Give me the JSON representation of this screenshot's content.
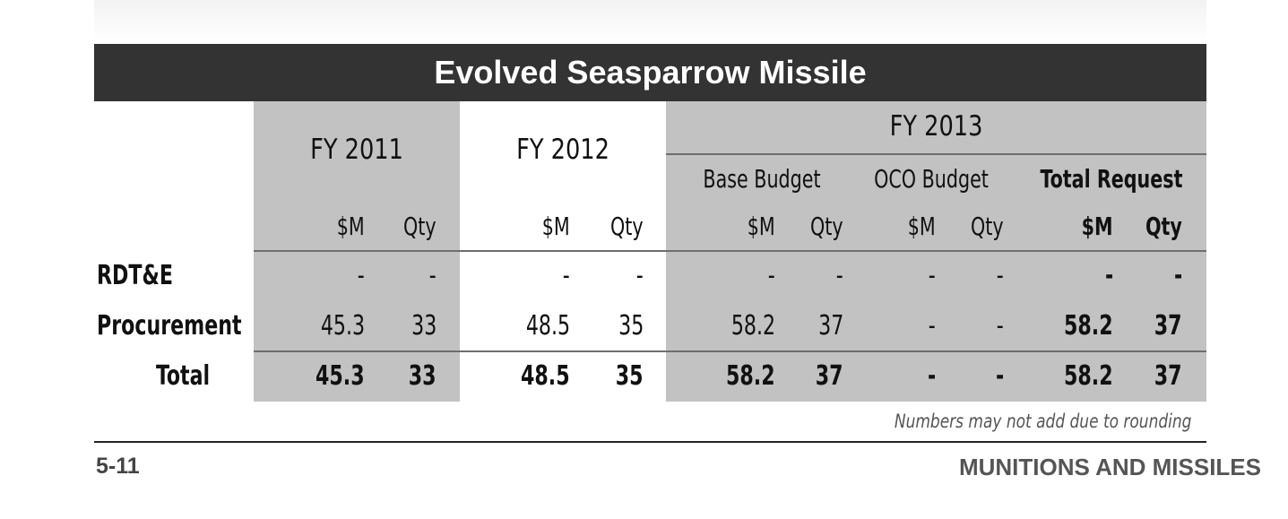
{
  "title": "Evolved Seasparrow Missile",
  "fiscal_years": {
    "fy2011": "FY 2011",
    "fy2012": "FY 2012",
    "fy2013": "FY 2013"
  },
  "fy2013_sub": {
    "base": "Base Budget",
    "oco": "OCO Budget",
    "total": "Total Request"
  },
  "col_labels": {
    "money": "$M",
    "qty": "Qty"
  },
  "rows": [
    {
      "label": "RDT&E",
      "values": [
        "-",
        "-",
        "-",
        "-",
        "-",
        "-",
        "-",
        "-",
        "-",
        "-"
      ]
    },
    {
      "label": "Procurement",
      "values": [
        "45.3",
        "33",
        "48.5",
        "35",
        "58.2",
        "37",
        "-",
        "-",
        "58.2",
        "37"
      ]
    },
    {
      "label": "Total",
      "values": [
        "45.3",
        "33",
        "48.5",
        "35",
        "58.2",
        "37",
        "-",
        "-",
        "58.2",
        "37"
      ]
    }
  ],
  "note": "Numbers may not add due to rounding",
  "footer": {
    "page": "5-11",
    "section": "MUNITIONS AND MISSILES"
  }
}
